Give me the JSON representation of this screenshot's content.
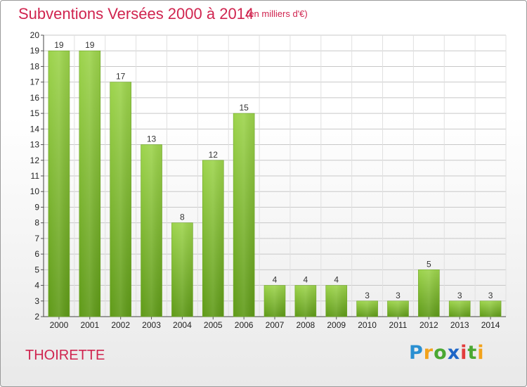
{
  "title": "Subventions Versées 2000 à 2014",
  "subtitle": "(en milliers d'€)",
  "commune": "THOIRETTE",
  "logo": "Proxiti",
  "colors": {
    "accent": "#d0244f",
    "bar_top": "#9dd44c",
    "bar_bottom": "#5f9a18",
    "grid": "#c8c8c8"
  },
  "chart_data": {
    "type": "bar",
    "categories": [
      "2000",
      "2001",
      "2002",
      "2003",
      "2004",
      "2005",
      "2006",
      "2007",
      "2008",
      "2009",
      "2010",
      "2011",
      "2012",
      "2013",
      "2014"
    ],
    "values": [
      19,
      19,
      17,
      13,
      8,
      12,
      15,
      4,
      4,
      4,
      3,
      3,
      5,
      3,
      3
    ],
    "title": "Subventions Versées 2000 à 2014",
    "xlabel": "",
    "ylabel": "",
    "ylim": [
      2,
      20
    ],
    "yticks": [
      2,
      3,
      4,
      5,
      6,
      7,
      8,
      9,
      10,
      11,
      12,
      13,
      14,
      15,
      16,
      17,
      18,
      19,
      20
    ],
    "grid": true,
    "data_labels": true
  }
}
